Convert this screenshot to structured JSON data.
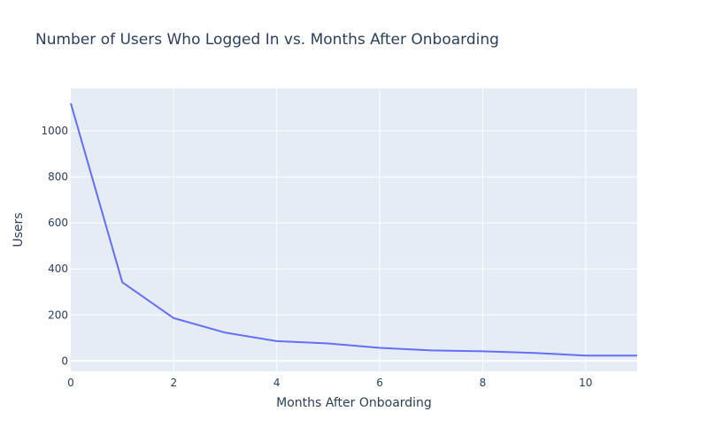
{
  "chart_data": {
    "type": "line",
    "title": "Number of Users Who Logged In vs. Months After Onboarding",
    "xlabel": "Months After Onboarding",
    "ylabel": "Users",
    "x": [
      0,
      1,
      2,
      3,
      4,
      5,
      6,
      7,
      8,
      9,
      10,
      11
    ],
    "series": [
      {
        "values": [
          1120,
          342,
          186,
          123,
          86,
          76,
          57,
          46,
          42,
          35,
          23,
          23
        ],
        "color": "#636efa"
      }
    ],
    "xlim": [
      0,
      11
    ],
    "ylim": [
      -45,
      1185
    ],
    "xticks": [
      0,
      2,
      4,
      6,
      8,
      10
    ],
    "yticks": [
      0,
      200,
      400,
      600,
      800,
      1000
    ],
    "grid": true,
    "legend": "none",
    "colors": {
      "plot_bg": "#e5ecf6",
      "grid": "#ffffff",
      "text": "#2a3f5f"
    }
  }
}
